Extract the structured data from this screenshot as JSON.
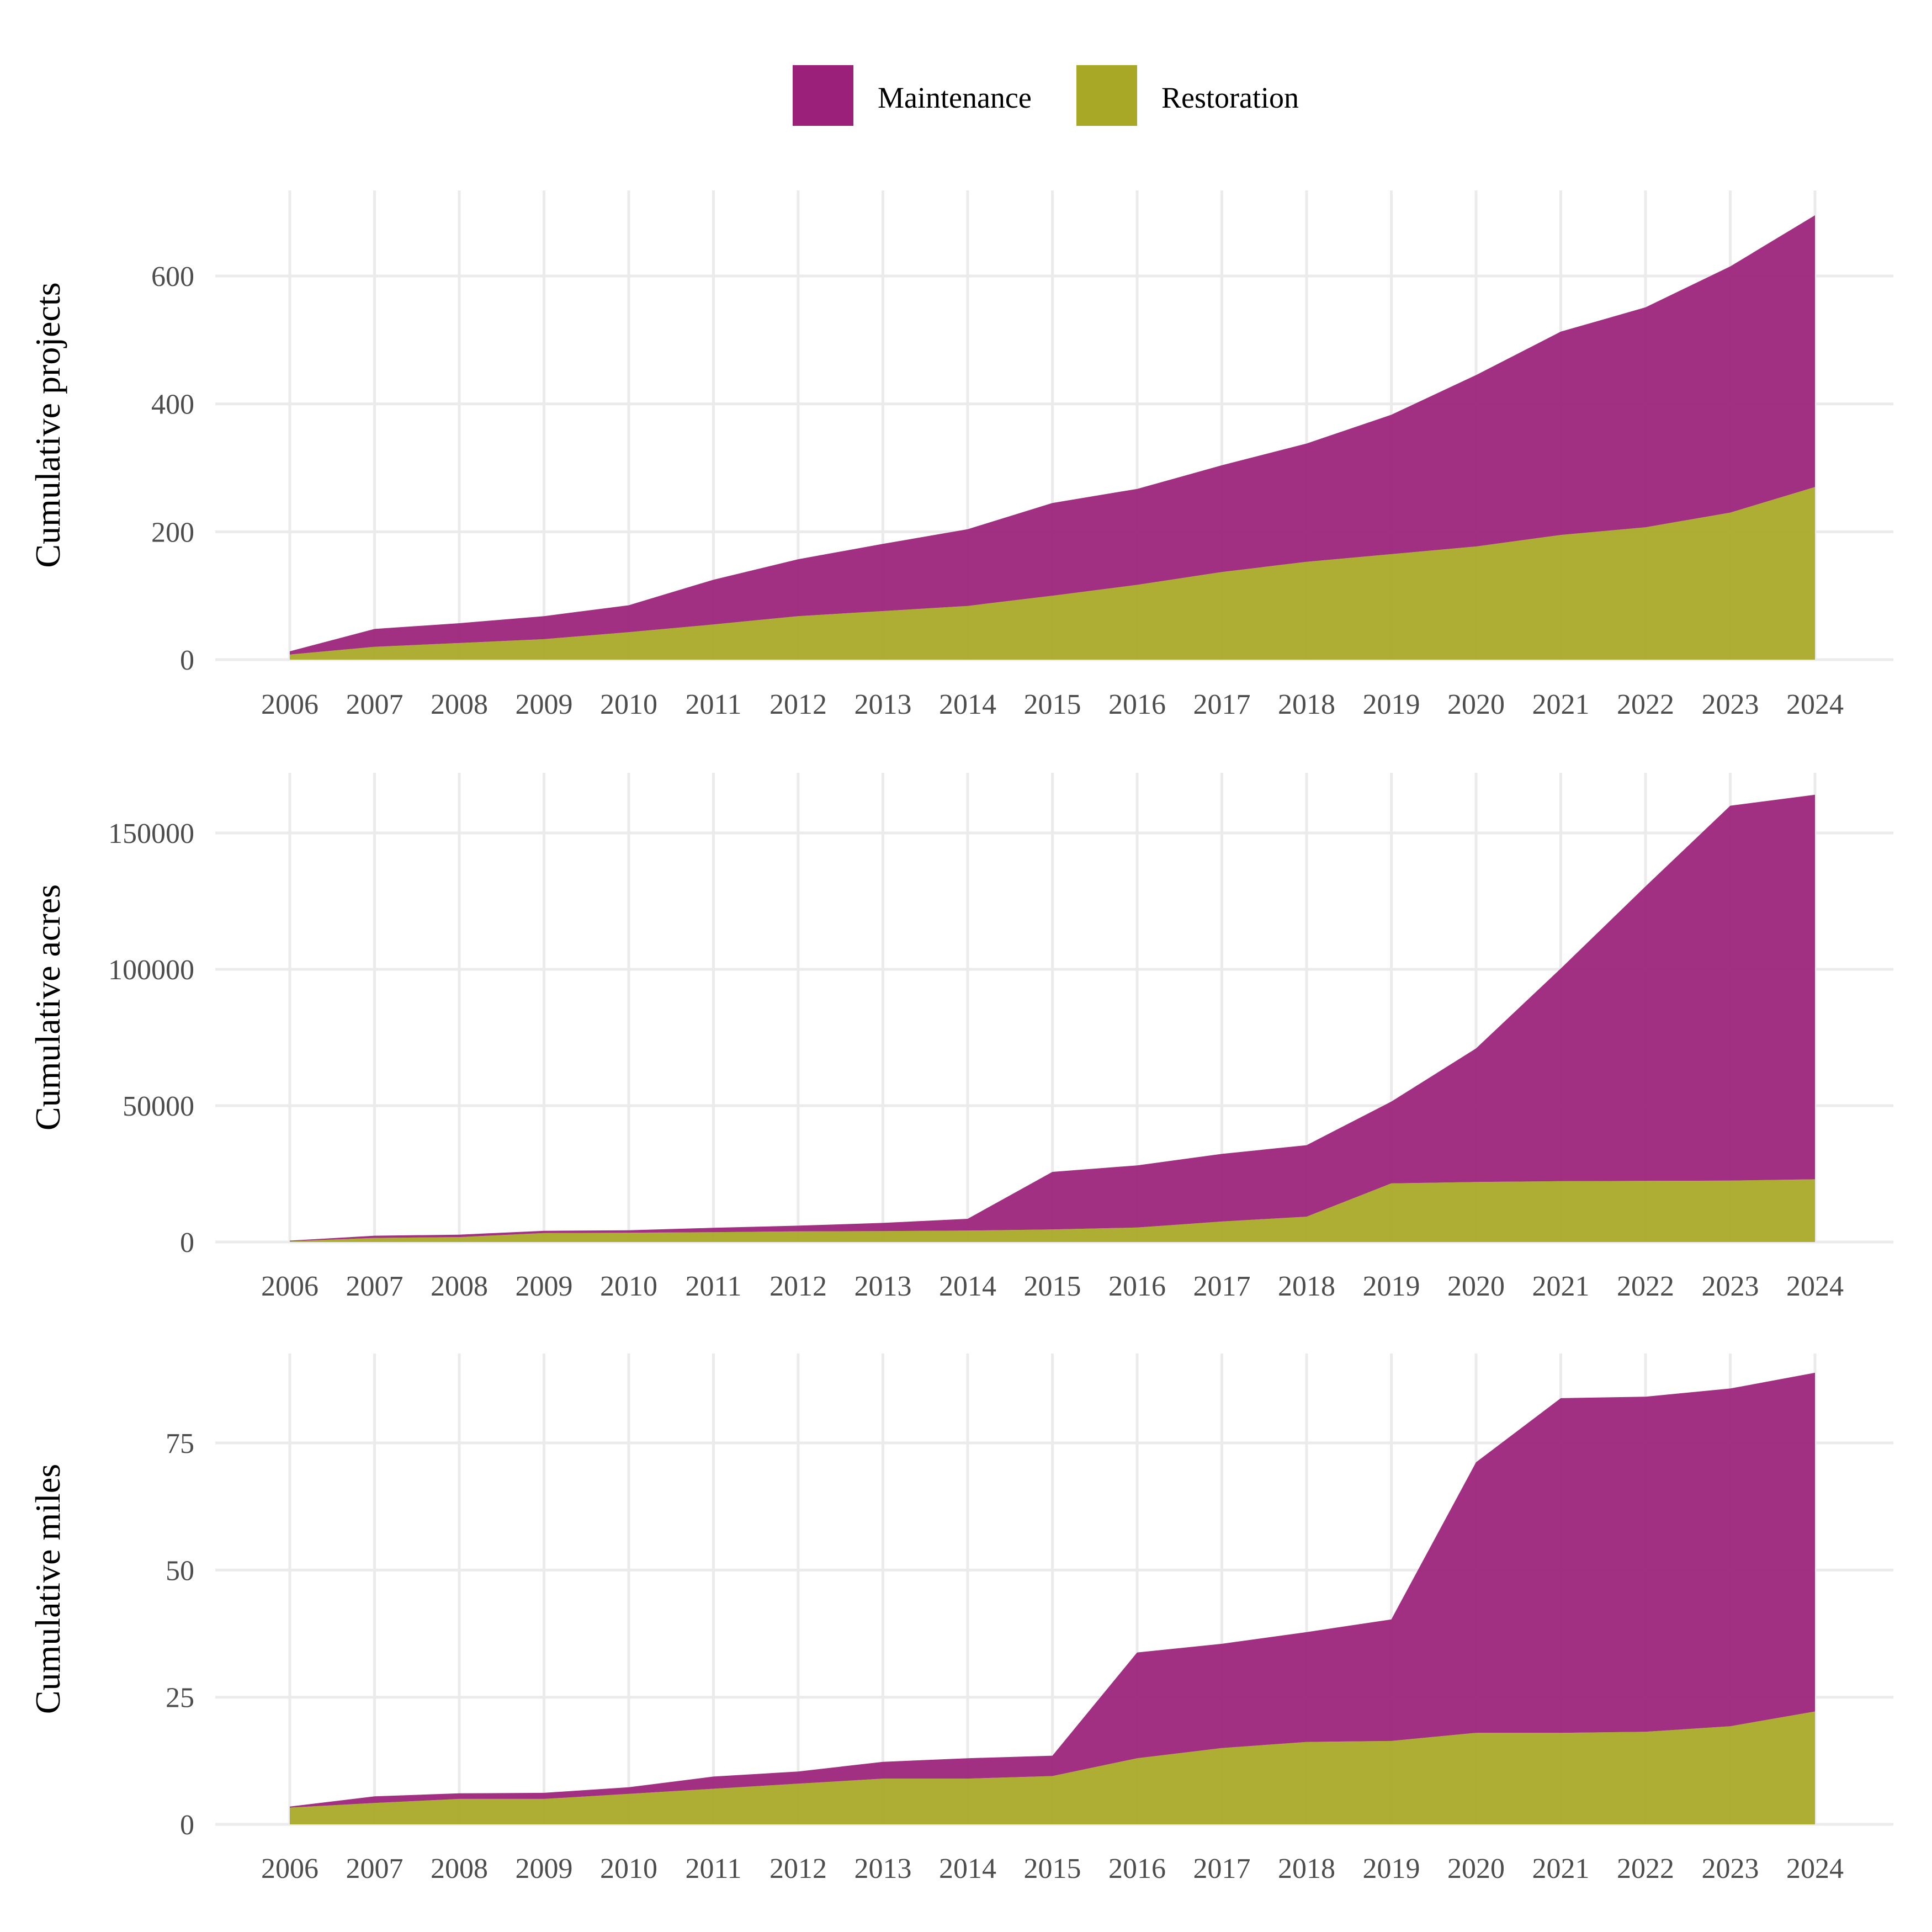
{
  "legend": {
    "items": [
      {
        "label": "Maintenance",
        "color": "#9b2079"
      },
      {
        "label": "Restoration",
        "color": "#a8a826"
      }
    ]
  },
  "chart_data": [
    {
      "type": "area",
      "stacked": true,
      "ylabel": "Cumulative projects",
      "xlabel": "",
      "x": [
        2006,
        2007,
        2008,
        2009,
        2010,
        2011,
        2012,
        2013,
        2014,
        2015,
        2016,
        2017,
        2018,
        2019,
        2020,
        2021,
        2022,
        2023,
        2024
      ],
      "xlim": [
        2006,
        2024
      ],
      "ylim": [
        0,
        700
      ],
      "yticks": [
        0,
        200,
        400,
        600
      ],
      "ytick_labels": [
        "0",
        "200",
        "400",
        "600"
      ],
      "grid": true,
      "series": [
        {
          "name": "Restoration",
          "color": "#a8a826",
          "values": [
            8,
            20,
            26,
            32,
            43,
            55,
            68,
            76,
            84,
            100,
            117,
            137,
            153,
            165,
            177,
            195,
            207,
            230,
            270
          ]
        },
        {
          "name": "Maintenance",
          "color": "#9b2079",
          "values": [
            5,
            28,
            31,
            36,
            42,
            70,
            89,
            105,
            120,
            145,
            150,
            167,
            185,
            218,
            268,
            318,
            344,
            385,
            425
          ]
        }
      ]
    },
    {
      "type": "area",
      "stacked": true,
      "ylabel": "Cumulative acres",
      "xlabel": "",
      "x": [
        2006,
        2007,
        2008,
        2009,
        2010,
        2011,
        2012,
        2013,
        2014,
        2015,
        2016,
        2017,
        2018,
        2019,
        2020,
        2021,
        2022,
        2023,
        2024
      ],
      "xlim": [
        2006,
        2024
      ],
      "ylim": [
        0,
        170000
      ],
      "yticks": [
        0,
        50000,
        100000,
        150000
      ],
      "ytick_labels": [
        "0",
        "50000",
        "100000",
        "150000"
      ],
      "grid": true,
      "series": [
        {
          "name": "Restoration",
          "color": "#a8a826",
          "values": [
            300,
            1500,
            1800,
            3300,
            3400,
            3600,
            3900,
            4000,
            4200,
            4600,
            5300,
            7500,
            9300,
            21500,
            22000,
            22300,
            22400,
            22500,
            23000
          ]
        },
        {
          "name": "Maintenance",
          "color": "#9b2079",
          "values": [
            200,
            800,
            900,
            800,
            900,
            1600,
            2100,
            3000,
            4300,
            21100,
            22800,
            24800,
            26200,
            30000,
            49000,
            78000,
            108000,
            137500,
            141000
          ]
        }
      ]
    },
    {
      "type": "area",
      "stacked": true,
      "ylabel": "Cumulative miles",
      "xlabel": "",
      "x": [
        2006,
        2007,
        2008,
        2009,
        2010,
        2011,
        2012,
        2013,
        2014,
        2015,
        2016,
        2017,
        2018,
        2019,
        2020,
        2021,
        2022,
        2023,
        2024
      ],
      "xlim": [
        2006,
        2024
      ],
      "ylim": [
        0,
        92
      ],
      "yticks": [
        0,
        25,
        50,
        75
      ],
      "ytick_labels": [
        "0",
        "25",
        "50",
        "75"
      ],
      "grid": true,
      "series": [
        {
          "name": "Restoration",
          "color": "#a8a826",
          "values": [
            3.3,
            4.2,
            5.0,
            5.0,
            6.0,
            7.0,
            8.0,
            9.0,
            9.0,
            9.5,
            13.0,
            15.0,
            16.2,
            16.4,
            18.0,
            18.0,
            18.2,
            19.3,
            22.2
          ]
        },
        {
          "name": "Maintenance",
          "color": "#9b2079",
          "values": [
            0.2,
            1.3,
            1.1,
            1.2,
            1.3,
            2.4,
            2.4,
            3.3,
            4.0,
            4.0,
            20.8,
            20.5,
            21.6,
            23.9,
            53.2,
            65.8,
            65.9,
            66.4,
            66.6
          ]
        }
      ]
    }
  ]
}
